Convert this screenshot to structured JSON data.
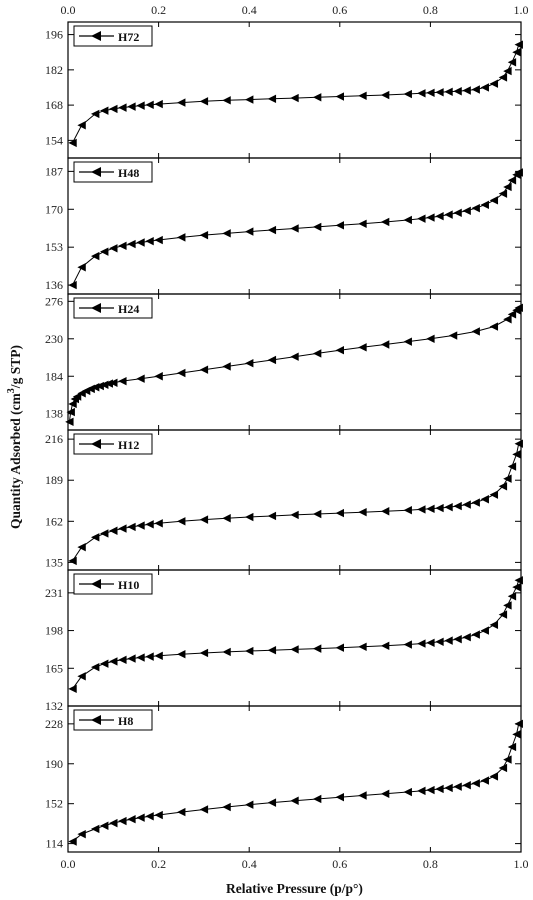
{
  "chart_data": {
    "type": "line",
    "xlabel": "Relative Pressure (p/p°)",
    "ylabel_main": "Quantity Adsorbed (cm",
    "ylabel_sup": "3",
    "ylabel_tail": "/g STP)",
    "xlim": [
      0,
      1
    ],
    "x_ticks": [
      "0.0",
      "0.2",
      "0.4",
      "0.6",
      "0.8",
      "1.0"
    ],
    "marker": "left-triangle",
    "panels": [
      {
        "name": "H72",
        "ylim": [
          147,
          201
        ],
        "y_ticks": [
          154,
          168,
          182,
          196
        ],
        "x": [
          0.01,
          0.03,
          0.06,
          0.08,
          0.1,
          0.12,
          0.14,
          0.16,
          0.18,
          0.2,
          0.25,
          0.3,
          0.35,
          0.4,
          0.45,
          0.5,
          0.55,
          0.6,
          0.65,
          0.7,
          0.75,
          0.78,
          0.8,
          0.82,
          0.84,
          0.86,
          0.88,
          0.9,
          0.92,
          0.94,
          0.96,
          0.97,
          0.98,
          0.99,
          0.995
        ],
        "y": [
          153,
          160,
          164.5,
          165.8,
          166.5,
          167.0,
          167.4,
          167.8,
          168.1,
          168.4,
          169.0,
          169.5,
          169.9,
          170.2,
          170.5,
          170.8,
          171.1,
          171.4,
          171.7,
          172.0,
          172.4,
          172.7,
          172.9,
          173.1,
          173.3,
          173.5,
          173.8,
          174.2,
          175.0,
          176.5,
          179,
          181.5,
          185,
          189,
          192
        ]
      },
      {
        "name": "H48",
        "ylim": [
          132,
          193
        ],
        "y_ticks": [
          136,
          153,
          170,
          187
        ],
        "x": [
          0.01,
          0.03,
          0.06,
          0.08,
          0.1,
          0.12,
          0.14,
          0.16,
          0.18,
          0.2,
          0.25,
          0.3,
          0.35,
          0.4,
          0.45,
          0.5,
          0.55,
          0.6,
          0.65,
          0.7,
          0.75,
          0.78,
          0.8,
          0.82,
          0.84,
          0.86,
          0.88,
          0.9,
          0.92,
          0.94,
          0.96,
          0.97,
          0.98,
          0.99,
          0.995
        ],
        "y": [
          136,
          144,
          149,
          151,
          152.5,
          153.6,
          154.4,
          155.1,
          155.7,
          156.2,
          157.4,
          158.4,
          159.2,
          160.0,
          160.7,
          161.4,
          162.1,
          162.8,
          163.5,
          164.3,
          165.2,
          165.8,
          166.3,
          166.9,
          167.6,
          168.4,
          169.3,
          170.5,
          172,
          174,
          177,
          180,
          183,
          185.5,
          186.5
        ]
      },
      {
        "name": "H24",
        "ylim": [
          118,
          285
        ],
        "y_ticks": [
          138,
          184,
          230,
          276
        ],
        "x": [
          0.003,
          0.006,
          0.01,
          0.015,
          0.02,
          0.03,
          0.04,
          0.05,
          0.06,
          0.07,
          0.08,
          0.09,
          0.1,
          0.12,
          0.16,
          0.2,
          0.25,
          0.3,
          0.35,
          0.4,
          0.45,
          0.5,
          0.55,
          0.6,
          0.65,
          0.7,
          0.75,
          0.8,
          0.85,
          0.9,
          0.94,
          0.97,
          0.98,
          0.99,
          0.995
        ],
        "y": [
          128,
          140,
          150,
          156,
          159,
          163,
          166,
          168.5,
          170.5,
          172,
          173.5,
          175,
          176,
          178,
          181,
          184,
          188,
          192,
          196,
          200,
          204,
          208,
          212,
          216,
          219.5,
          223,
          226.5,
          230,
          234,
          239,
          245,
          254,
          260,
          265,
          268
        ]
      },
      {
        "name": "H12",
        "ylim": [
          130,
          222
        ],
        "y_ticks": [
          135,
          162,
          189,
          216
        ],
        "x": [
          0.01,
          0.03,
          0.06,
          0.08,
          0.1,
          0.12,
          0.14,
          0.16,
          0.18,
          0.2,
          0.25,
          0.3,
          0.35,
          0.4,
          0.45,
          0.5,
          0.55,
          0.6,
          0.65,
          0.7,
          0.75,
          0.78,
          0.8,
          0.82,
          0.84,
          0.86,
          0.88,
          0.9,
          0.92,
          0.94,
          0.96,
          0.97,
          0.98,
          0.99,
          0.995
        ],
        "y": [
          136,
          145,
          151.5,
          154,
          155.8,
          157.2,
          158.3,
          159.2,
          160,
          160.7,
          162,
          163.1,
          164,
          164.8,
          165.5,
          166.2,
          166.8,
          167.4,
          168,
          168.6,
          169.3,
          169.8,
          170.2,
          170.7,
          171.3,
          172,
          173,
          174.3,
          176.5,
          179.5,
          185,
          190,
          198,
          206,
          213
        ]
      },
      {
        "name": "H10",
        "ylim": [
          132,
          251
        ],
        "y_ticks": [
          132,
          165,
          198,
          231
        ],
        "x": [
          0.01,
          0.03,
          0.06,
          0.08,
          0.1,
          0.12,
          0.14,
          0.16,
          0.18,
          0.2,
          0.25,
          0.3,
          0.35,
          0.4,
          0.45,
          0.5,
          0.55,
          0.6,
          0.65,
          0.7,
          0.75,
          0.78,
          0.8,
          0.82,
          0.84,
          0.86,
          0.88,
          0.9,
          0.92,
          0.94,
          0.96,
          0.97,
          0.98,
          0.99,
          0.995
        ],
        "y": [
          147,
          158,
          166,
          169,
          171,
          172.4,
          173.5,
          174.4,
          175.2,
          175.9,
          177.3,
          178.4,
          179.3,
          180.1,
          180.8,
          181.5,
          182.2,
          183,
          183.8,
          184.7,
          185.8,
          186.6,
          187.3,
          188.2,
          189.2,
          190.5,
          192.2,
          194.5,
          198,
          203,
          212,
          220,
          228,
          236,
          242
        ]
      },
      {
        "name": "H8",
        "ylim": [
          106,
          245
        ],
        "y_ticks": [
          114,
          152,
          190,
          228
        ],
        "x": [
          0.01,
          0.03,
          0.06,
          0.08,
          0.1,
          0.12,
          0.14,
          0.16,
          0.18,
          0.2,
          0.25,
          0.3,
          0.35,
          0.4,
          0.45,
          0.5,
          0.55,
          0.6,
          0.65,
          0.7,
          0.75,
          0.78,
          0.8,
          0.82,
          0.84,
          0.86,
          0.88,
          0.9,
          0.92,
          0.94,
          0.96,
          0.97,
          0.98,
          0.99,
          0.995
        ],
        "y": [
          116,
          123,
          128,
          131,
          133.5,
          135.5,
          137.2,
          138.7,
          140,
          141.2,
          144,
          146.5,
          148.8,
          151,
          153,
          154.8,
          156.5,
          158.2,
          159.8,
          161.4,
          163.1,
          164.2,
          165,
          166,
          167,
          168.2,
          169.6,
          171.4,
          174,
          178,
          186,
          194,
          206,
          218,
          228
        ]
      }
    ]
  }
}
